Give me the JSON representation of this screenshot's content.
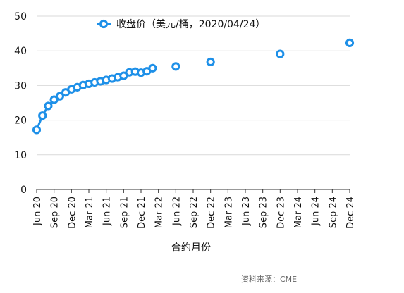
{
  "chart_data": {
    "type": "line",
    "title": "",
    "xlabel": "合约月份",
    "ylabel": "",
    "ylim": [
      0,
      50
    ],
    "yticks": [
      0,
      10,
      20,
      30,
      40,
      50
    ],
    "grid": true,
    "legend_position": "top-center",
    "x_tick_labels": [
      "Jun 20",
      "Sep 20",
      "Dec 20",
      "Mar 21",
      "Jun 21",
      "Sep 21",
      "Dec 21",
      "Mar 22",
      "Jun 22",
      "Sep 22",
      "Dec 22",
      "Mar 23",
      "Jun 23",
      "Sep 23",
      "Dec 23",
      "Mar 24",
      "Jun 24",
      "Sep 24",
      "Dec 24"
    ],
    "x_tick_dates": [
      "2020-06",
      "2020-09",
      "2020-12",
      "2021-03",
      "2021-06",
      "2021-09",
      "2021-12",
      "2022-03",
      "2022-06",
      "2022-09",
      "2022-12",
      "2023-03",
      "2023-06",
      "2023-09",
      "2023-12",
      "2024-03",
      "2024-06",
      "2024-09",
      "2024-12"
    ],
    "series": [
      {
        "name": "收盘价（美元/桶，2020/04/24）",
        "color": "#1e90e8",
        "points": [
          {
            "x": "2020-06",
            "y": 17.2
          },
          {
            "x": "2020-07",
            "y": 21.3
          },
          {
            "x": "2020-08",
            "y": 24.1
          },
          {
            "x": "2020-09",
            "y": 25.9
          },
          {
            "x": "2020-10",
            "y": 26.9
          },
          {
            "x": "2020-11",
            "y": 28.0
          },
          {
            "x": "2020-12",
            "y": 28.9
          },
          {
            "x": "2021-01",
            "y": 29.5
          },
          {
            "x": "2021-02",
            "y": 30.1
          },
          {
            "x": "2021-03",
            "y": 30.5
          },
          {
            "x": "2021-04",
            "y": 30.9
          },
          {
            "x": "2021-05",
            "y": 31.2
          },
          {
            "x": "2021-06",
            "y": 31.6
          },
          {
            "x": "2021-07",
            "y": 32.0
          },
          {
            "x": "2021-08",
            "y": 32.4
          },
          {
            "x": "2021-09",
            "y": 32.8
          },
          {
            "x": "2021-10",
            "y": 33.8
          },
          {
            "x": "2021-11",
            "y": 34.0
          },
          {
            "x": "2021-12",
            "y": 33.7
          },
          {
            "x": "2022-01",
            "y": 34.1
          },
          {
            "x": "2022-02",
            "y": 35.0
          },
          {
            "x": "2022-06",
            "y": 35.5
          },
          {
            "x": "2022-12",
            "y": 36.8
          },
          {
            "x": "2023-12",
            "y": 39.1
          },
          {
            "x": "2024-12",
            "y": 42.3
          }
        ]
      }
    ]
  },
  "footer": {
    "source": "资料来源：CME"
  }
}
